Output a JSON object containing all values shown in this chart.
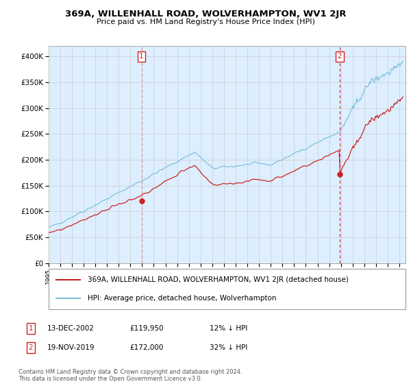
{
  "title": "369A, WILLENHALL ROAD, WOLVERHAMPTON, WV1 2JR",
  "subtitle": "Price paid vs. HM Land Registry's House Price Index (HPI)",
  "ylim": [
    0,
    420000
  ],
  "yticks": [
    0,
    50000,
    100000,
    150000,
    200000,
    250000,
    300000,
    350000,
    400000
  ],
  "ytick_labels": [
    "£0",
    "£50K",
    "£100K",
    "£150K",
    "£200K",
    "£250K",
    "£300K",
    "£350K",
    "£400K"
  ],
  "hpi_color": "#7fbfdf",
  "price_color": "#cc2222",
  "bg_color": "#ddeeff",
  "purchase1": {
    "date_label": "13-DEC-2002",
    "price": 119950,
    "label": "12% ↓ HPI",
    "year": 2002.95
  },
  "purchase2": {
    "date_label": "19-NOV-2019",
    "price": 172000,
    "label": "32% ↓ HPI",
    "year": 2019.88
  },
  "legend_property": "369A, WILLENHALL ROAD, WOLVERHAMPTON, WV1 2JR (detached house)",
  "legend_hpi": "HPI: Average price, detached house, Wolverhampton",
  "footnote": "Contains HM Land Registry data © Crown copyright and database right 2024.\nThis data is licensed under the Open Government Licence v3.0.",
  "x_start_year": 1995.0,
  "x_end_year": 2025.5
}
